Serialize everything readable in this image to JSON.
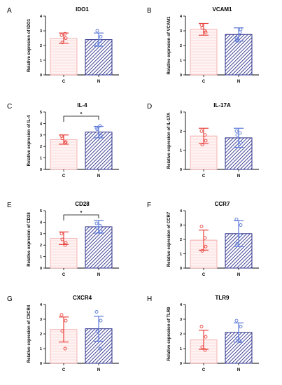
{
  "colors": {
    "control_edge": "#f4a7a7",
    "control_fill": "#fff3f3",
    "control_hatch": "#f7c3c3",
    "control_point": "#e8413b",
    "treat_edge": "#2b2f8a",
    "treat_hatch": "#2b2f8a",
    "treat_point": "#5a78d8"
  },
  "chart_data": [
    {
      "letter": "A",
      "type": "bar",
      "title": "IDO1",
      "ylabel": "Relative expresion of IDO1",
      "categories": [
        "C",
        "N"
      ],
      "ylim": [
        0,
        4
      ],
      "yticks": [
        "0",
        "1",
        "2",
        "3",
        "4"
      ],
      "values": [
        2.5,
        2.4
      ],
      "errors": [
        0.35,
        0.45
      ],
      "points": [
        [
          2.7,
          2.5,
          2.2,
          2.8
        ],
        [
          2.1,
          2.6,
          3.0,
          2.3
        ]
      ],
      "significance": null
    },
    {
      "letter": "B",
      "type": "bar",
      "title": "VCAM1",
      "ylabel": "Relative expresion of VCAM1",
      "categories": [
        "C",
        "N"
      ],
      "ylim": [
        0,
        4
      ],
      "yticks": [
        "0",
        "1",
        "2",
        "3",
        "4"
      ],
      "values": [
        3.1,
        2.75
      ],
      "errors": [
        0.4,
        0.45
      ],
      "points": [
        [
          3.4,
          2.9,
          3.2,
          3.0
        ],
        [
          2.5,
          3.1,
          2.3,
          2.9
        ]
      ],
      "significance": null
    },
    {
      "letter": "C",
      "type": "bar",
      "title": "IL-4",
      "ylabel": "Relative expresion of IL-4",
      "categories": [
        "C",
        "N"
      ],
      "ylim": [
        0,
        5
      ],
      "yticks": [
        "0",
        "1",
        "2",
        "3",
        "4",
        "5"
      ],
      "values": [
        2.6,
        3.25
      ],
      "errors": [
        0.4,
        0.5
      ],
      "points": [
        [
          2.9,
          2.4,
          2.7,
          2.3
        ],
        [
          3.6,
          3.0,
          3.5,
          3.8
        ]
      ],
      "significance": "*"
    },
    {
      "letter": "D",
      "type": "bar",
      "title": "IL-17A",
      "ylabel": "Relative expresion of IL-17A",
      "categories": [
        "C",
        "N"
      ],
      "ylim": [
        0,
        3
      ],
      "yticks": [
        "0",
        "1",
        "2",
        "3"
      ],
      "values": [
        1.75,
        1.65
      ],
      "errors": [
        0.4,
        0.5
      ],
      "points": [
        [
          2.0,
          1.5,
          1.3,
          1.8
        ],
        [
          2.0,
          1.4,
          1.8,
          1.9
        ]
      ],
      "significance": null
    },
    {
      "letter": "E",
      "type": "bar",
      "title": "CD28",
      "ylabel": "Relative expresion of CD28",
      "categories": [
        "C",
        "N"
      ],
      "ylim": [
        0,
        5
      ],
      "yticks": [
        "0",
        "1",
        "2",
        "3",
        "4",
        "5"
      ],
      "values": [
        2.6,
        3.6
      ],
      "errors": [
        0.55,
        0.55
      ],
      "points": [
        [
          3.0,
          2.2,
          2.5,
          2.0
        ],
        [
          3.9,
          3.2,
          3.5,
          3.7
        ]
      ],
      "significance": "*"
    },
    {
      "letter": "F",
      "type": "bar",
      "title": "CCR7",
      "ylabel": "Relative expresion of CCR7",
      "categories": [
        "C",
        "N"
      ],
      "ylim": [
        0,
        4
      ],
      "yticks": [
        "0",
        "1",
        "2",
        "3",
        "4"
      ],
      "values": [
        1.95,
        2.4
      ],
      "errors": [
        0.7,
        0.9
      ],
      "points": [
        [
          2.9,
          1.5,
          1.2,
          2.1
        ],
        [
          3.4,
          3.0,
          1.7,
          2.3
        ]
      ],
      "significance": null
    },
    {
      "letter": "G",
      "type": "bar",
      "title": "CXCR4",
      "ylabel": "Relative expresion of CXCR4",
      "categories": [
        "C",
        "N"
      ],
      "ylim": [
        0,
        4
      ],
      "yticks": [
        "0",
        "1",
        "2",
        "3",
        "4"
      ],
      "values": [
        2.3,
        2.35
      ],
      "errors": [
        0.85,
        0.85
      ],
      "points": [
        [
          3.3,
          2.9,
          2.2,
          1.0
        ],
        [
          3.5,
          2.9,
          2.2,
          1.0
        ]
      ],
      "significance": null
    },
    {
      "letter": "H",
      "type": "bar",
      "title": "TLR9",
      "ylabel": "Relative expresion of TLR9",
      "categories": [
        "C",
        "N"
      ],
      "ylim": [
        0,
        4
      ],
      "yticks": [
        "0",
        "1",
        "2",
        "3",
        "4"
      ],
      "values": [
        1.6,
        2.1
      ],
      "errors": [
        0.65,
        0.65
      ],
      "points": [
        [
          2.5,
          1.8,
          1.1,
          0.9
        ],
        [
          2.9,
          2.5,
          1.7,
          1.5
        ]
      ],
      "significance": null
    }
  ]
}
